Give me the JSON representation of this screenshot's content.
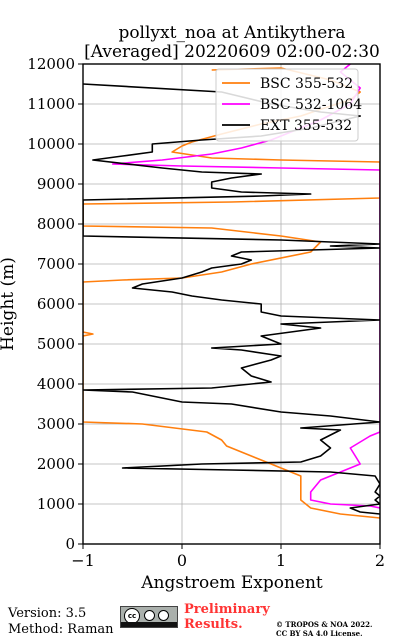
{
  "chart_data": {
    "type": "line",
    "title_line1": "pollyxt_noa at Antikythera",
    "title_line2": "[Averaged] 20220609 02:00-02:30",
    "xlabel": "Angstroem Exponent",
    "ylabel": "Height (m)",
    "xlim": [
      -1,
      2
    ],
    "ylim": [
      0,
      12000
    ],
    "x_ticks": [
      -1,
      0,
      1,
      2
    ],
    "x_tick_labels": [
      "−1",
      "0",
      "1",
      "2"
    ],
    "y_ticks": [
      0,
      1000,
      2000,
      3000,
      4000,
      5000,
      6000,
      7000,
      8000,
      9000,
      10000,
      11000,
      12000
    ],
    "grid": true,
    "legend_position": "top-right",
    "series": [
      {
        "name": "BSC 355-532",
        "color": "#ff7f0e",
        "points": [
          [
            2.0,
            650
          ],
          [
            1.6,
            750
          ],
          [
            1.3,
            900
          ],
          [
            1.2,
            1100
          ],
          [
            1.2,
            1400
          ],
          [
            1.2,
            1700
          ],
          [
            1.0,
            1900
          ],
          [
            0.8,
            2100
          ],
          [
            0.6,
            2300
          ],
          [
            0.45,
            2450
          ],
          [
            0.4,
            2600
          ],
          [
            0.25,
            2800
          ],
          [
            -0.4,
            3000
          ],
          [
            -1.0,
            3050
          ],
          [
            -1.0,
            5200
          ],
          [
            -0.9,
            5250
          ],
          [
            -1.0,
            5300
          ],
          [
            -1.0,
            6550
          ],
          [
            -0.6,
            6600
          ],
          [
            0.0,
            6650
          ],
          [
            0.4,
            6800
          ],
          [
            0.7,
            7000
          ],
          [
            1.3,
            7300
          ],
          [
            1.4,
            7550
          ],
          [
            1.0,
            7700
          ],
          [
            0.3,
            7900
          ],
          [
            -1.0,
            7950
          ],
          [
            -1.0,
            8500
          ],
          [
            0.5,
            8550
          ],
          [
            2.0,
            8650
          ],
          [
            2.0,
            9550
          ],
          [
            1.0,
            9600
          ],
          [
            0.3,
            9650
          ],
          [
            -0.1,
            9800
          ],
          [
            0.0,
            9950
          ],
          [
            0.05,
            10000
          ],
          [
            0.1,
            10050
          ],
          [
            0.4,
            10250
          ],
          [
            0.8,
            10500
          ],
          [
            1.2,
            10700
          ],
          [
            1.5,
            10950
          ],
          [
            1.7,
            11100
          ],
          [
            1.8,
            11300
          ],
          [
            1.5,
            11600
          ],
          [
            1.0,
            11900
          ],
          [
            0.3,
            11850
          ]
        ]
      },
      {
        "name": "BSC 532-1064",
        "color": "#ff00ff",
        "points": [
          [
            2.0,
            900
          ],
          [
            1.9,
            950
          ],
          [
            1.5,
            1000
          ],
          [
            1.3,
            1100
          ],
          [
            1.3,
            1300
          ],
          [
            1.4,
            1600
          ],
          [
            1.6,
            1800
          ],
          [
            1.8,
            2000
          ],
          [
            1.75,
            2200
          ],
          [
            1.7,
            2400
          ],
          [
            1.9,
            2700
          ],
          [
            2.0,
            2800
          ],
          [
            2.0,
            9350
          ],
          [
            1.0,
            9400
          ],
          [
            0.0,
            9450
          ],
          [
            -0.7,
            9500
          ],
          [
            -0.2,
            9600
          ],
          [
            0.3,
            9750
          ],
          [
            0.6,
            9900
          ],
          [
            0.9,
            10100
          ],
          [
            1.1,
            10300
          ],
          [
            1.4,
            10600
          ],
          [
            1.7,
            11000
          ],
          [
            1.8,
            11400
          ],
          [
            1.6,
            11800
          ],
          [
            1.7,
            12000
          ]
        ]
      },
      {
        "name": "EXT 355-532",
        "color": "#000000",
        "points": [
          [
            2.0,
            750
          ],
          [
            1.8,
            800
          ],
          [
            1.7,
            900
          ],
          [
            2.0,
            1000
          ],
          [
            1.95,
            1100
          ],
          [
            2.0,
            1200
          ],
          [
            1.95,
            1300
          ],
          [
            2.0,
            1500
          ],
          [
            1.95,
            1700
          ],
          [
            1.5,
            1800
          ],
          [
            0.5,
            1850
          ],
          [
            -0.6,
            1900
          ],
          [
            0.2,
            2000
          ],
          [
            1.2,
            2050
          ],
          [
            1.4,
            2200
          ],
          [
            1.5,
            2400
          ],
          [
            1.4,
            2600
          ],
          [
            1.6,
            2850
          ],
          [
            1.2,
            2900
          ],
          [
            2.0,
            3050
          ],
          [
            1.5,
            3200
          ],
          [
            1.0,
            3300
          ],
          [
            0.5,
            3500
          ],
          [
            0.0,
            3550
          ],
          [
            -0.5,
            3800
          ],
          [
            -1.0,
            3850
          ],
          [
            0.3,
            3900
          ],
          [
            0.9,
            4050
          ],
          [
            0.7,
            4200
          ],
          [
            0.6,
            4400
          ],
          [
            0.9,
            4600
          ],
          [
            1.0,
            4700
          ],
          [
            0.6,
            4850
          ],
          [
            0.3,
            4900
          ],
          [
            1.0,
            5000
          ],
          [
            0.8,
            5200
          ],
          [
            1.4,
            5400
          ],
          [
            1.0,
            5500
          ],
          [
            2.0,
            5600
          ],
          [
            1.0,
            5700
          ],
          [
            0.8,
            5800
          ],
          [
            0.8,
            6000
          ],
          [
            0.4,
            6100
          ],
          [
            0.1,
            6200
          ],
          [
            -0.1,
            6300
          ],
          [
            -0.5,
            6400
          ],
          [
            -0.4,
            6500
          ],
          [
            0.0,
            6650
          ],
          [
            0.2,
            6800
          ],
          [
            0.3,
            6900
          ],
          [
            0.6,
            7000
          ],
          [
            0.7,
            7100
          ],
          [
            0.5,
            7200
          ],
          [
            0.6,
            7300
          ],
          [
            2.0,
            7400
          ],
          [
            1.5,
            7450
          ],
          [
            2.0,
            7500
          ],
          [
            1.0,
            7600
          ],
          [
            -1.0,
            7700
          ],
          [
            -1.0,
            8600
          ],
          [
            0.8,
            8700
          ],
          [
            1.3,
            8750
          ],
          [
            0.6,
            8800
          ],
          [
            0.3,
            8900
          ],
          [
            0.3,
            9050
          ],
          [
            0.5,
            9150
          ],
          [
            0.8,
            9250
          ],
          [
            0.2,
            9300
          ],
          [
            -0.2,
            9400
          ],
          [
            -0.9,
            9600
          ],
          [
            -0.6,
            9700
          ],
          [
            -0.3,
            9800
          ],
          [
            -0.3,
            10000
          ],
          [
            0.2,
            10100
          ],
          [
            0.8,
            10200
          ],
          [
            1.3,
            10400
          ],
          [
            1.8,
            10700
          ],
          [
            1.4,
            10800
          ],
          [
            0.9,
            11000
          ],
          [
            0.4,
            11300
          ],
          [
            -1.0,
            11500
          ]
        ]
      }
    ]
  },
  "footer": {
    "version": "Version: 3.5",
    "method": "Method: Raman",
    "preliminary_line1": "Preliminary",
    "preliminary_line2": "Results.",
    "license_line1": "© TROPOS & NOA 2022.",
    "license_line2": "CC BY SA 4.0 License.",
    "cc_badge_text": "cc"
  }
}
